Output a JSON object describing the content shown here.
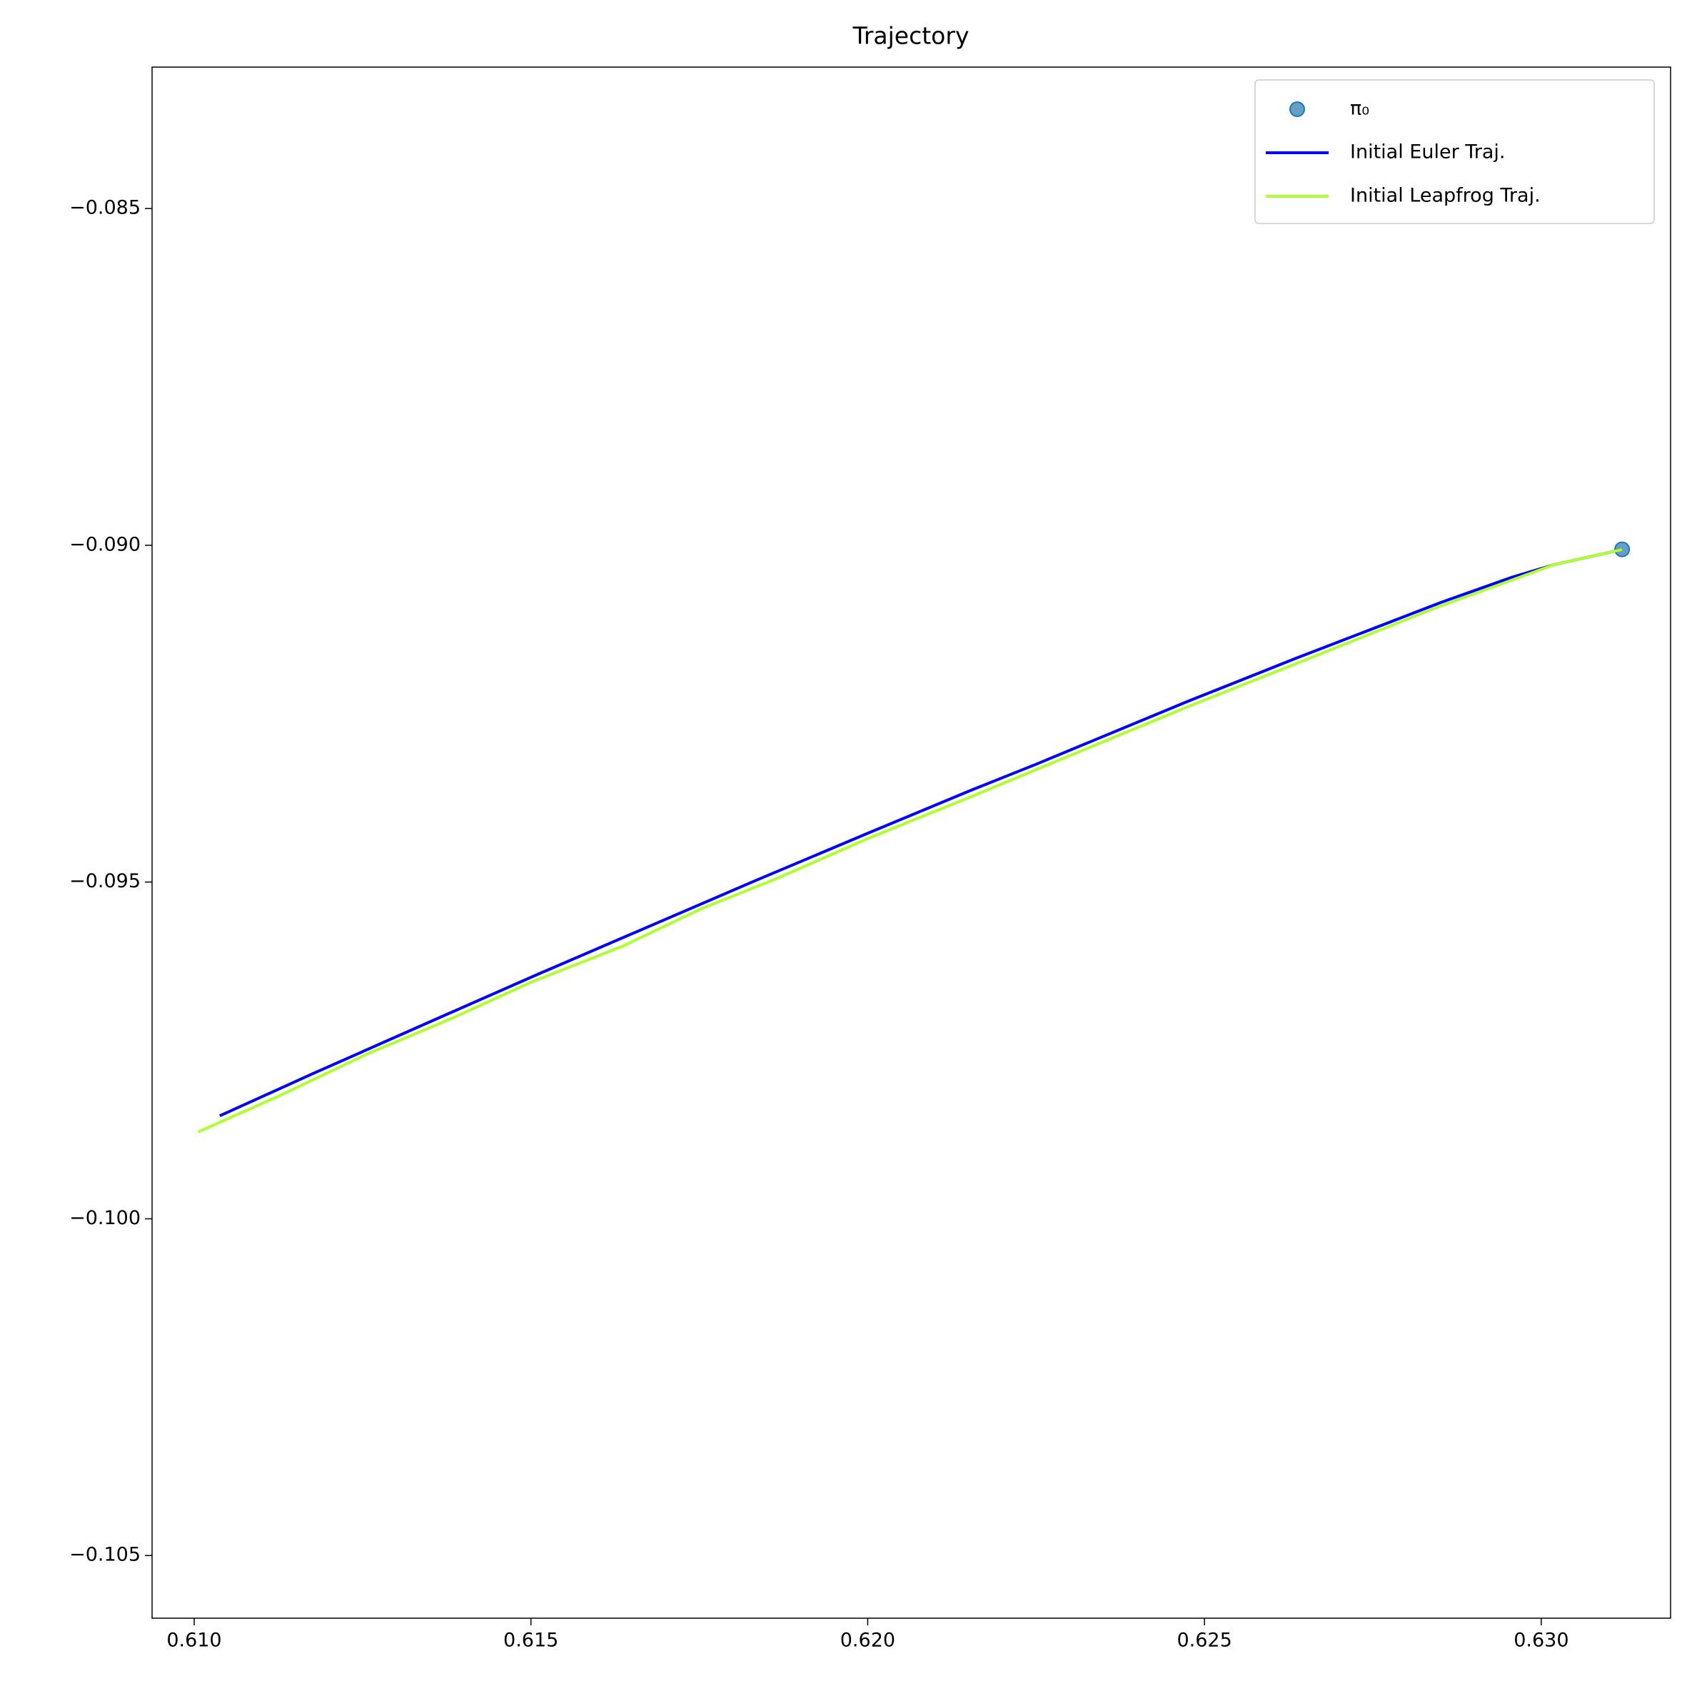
{
  "chart_data": {
    "type": "line",
    "title": "Trajectory",
    "xlim": [
      0.609375,
      0.63192
    ],
    "ylim": [
      -0.10593,
      -0.0829
    ],
    "xticks": [
      {
        "value": 0.61,
        "label": "0.610"
      },
      {
        "value": 0.615,
        "label": "0.615"
      },
      {
        "value": 0.62,
        "label": "0.620"
      },
      {
        "value": 0.625,
        "label": "0.625"
      },
      {
        "value": 0.63,
        "label": "0.630"
      }
    ],
    "yticks": [
      {
        "value": -0.085,
        "label": "−0.085"
      },
      {
        "value": -0.09,
        "label": "−0.090"
      },
      {
        "value": -0.095,
        "label": "−0.095"
      },
      {
        "value": -0.1,
        "label": "−0.100"
      },
      {
        "value": -0.105,
        "label": "−0.105"
      }
    ],
    "grid": false,
    "legend": "upper right",
    "series": [
      {
        "name": "π₀",
        "color": "#1f77b4",
        "mode": "marker",
        "x": [
          0.6312
        ],
        "values": [
          -0.09006
        ]
      },
      {
        "name": "Initial Euler Traj.",
        "color": "#0000ff",
        "mode": "line",
        "x": [
          0.61038,
          0.61176,
          0.61353,
          0.61513,
          0.61673,
          0.61833,
          0.62,
          0.62154,
          0.6225,
          0.62474,
          0.62635,
          0.62851,
          0.62955,
          0.63019,
          0.6312
        ],
        "values": [
          -0.098471,
          -0.097846,
          -0.097062,
          -0.096357,
          -0.095669,
          -0.09498,
          -0.094276,
          -0.093635,
          -0.093251,
          -0.092322,
          -0.091681,
          -0.090849,
          -0.09048,
          -0.090288,
          -0.090064
        ]
      },
      {
        "name": "Initial Leapfrog Traj.",
        "color": "#adff2f",
        "mode": "line",
        "x": [
          0.61006,
          0.61128,
          0.61256,
          0.61385,
          0.61497,
          0.61635,
          0.61753,
          0.61865,
          0.62,
          0.62154,
          0.6225,
          0.62474,
          0.62635,
          0.62843,
          0.63019,
          0.6312
        ],
        "values": [
          -0.098711,
          -0.098167,
          -0.097558,
          -0.097014,
          -0.096501,
          -0.095957,
          -0.095396,
          -0.094948,
          -0.094355,
          -0.093731,
          -0.093331,
          -0.092402,
          -0.091761,
          -0.090929,
          -0.090288,
          -0.090064
        ]
      }
    ]
  }
}
